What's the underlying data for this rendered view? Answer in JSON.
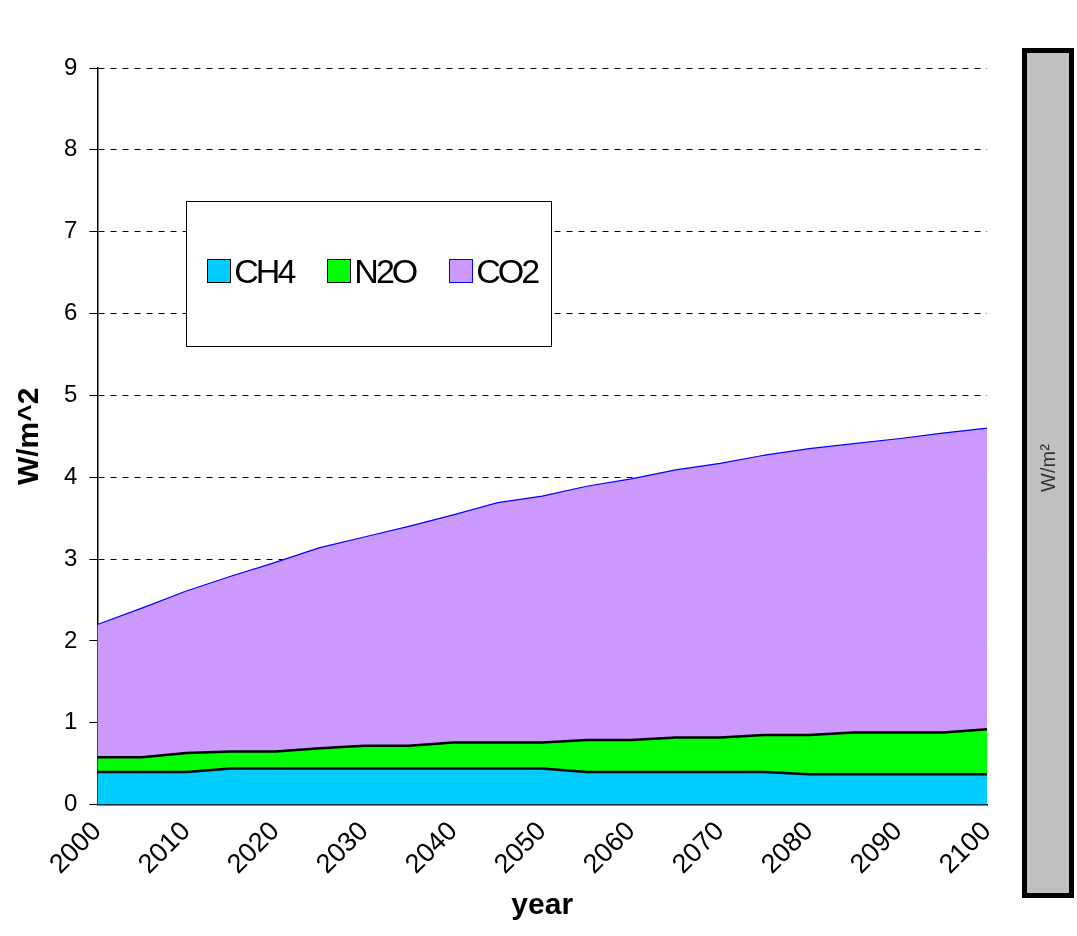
{
  "chart_data": {
    "type": "area",
    "stacked": true,
    "xlabel": "year",
    "ylabel": "W/m^2",
    "categories": [
      "2000",
      null,
      "2010",
      null,
      "2020",
      null,
      "2030",
      null,
      "2040",
      null,
      "2050",
      null,
      "2060",
      null,
      "2070",
      null,
      "2080",
      null,
      "2090",
      null,
      "2100"
    ],
    "series": [
      {
        "name": "CH4",
        "color": "#00ccff",
        "values": [
          0.4,
          0.4,
          0.4,
          0.44,
          0.44,
          0.44,
          0.44,
          0.44,
          0.44,
          0.44,
          0.44,
          0.4,
          0.4,
          0.4,
          0.4,
          0.4,
          0.37,
          0.37,
          0.37,
          0.37,
          0.37
        ]
      },
      {
        "name": "N2O",
        "color": "#00ff00",
        "values": [
          0.18,
          0.18,
          0.23,
          0.21,
          0.21,
          0.25,
          0.28,
          0.28,
          0.32,
          0.32,
          0.32,
          0.39,
          0.39,
          0.42,
          0.42,
          0.45,
          0.48,
          0.51,
          0.51,
          0.51,
          0.55
        ]
      },
      {
        "name": "CO2",
        "color": "#cc99ff",
        "values": [
          1.62,
          1.82,
          1.98,
          2.14,
          2.31,
          2.45,
          2.55,
          2.68,
          2.78,
          2.93,
          3.01,
          3.1,
          3.19,
          3.27,
          3.35,
          3.42,
          3.5,
          3.53,
          3.59,
          3.66,
          3.68
        ]
      }
    ],
    "ylim": [
      0,
      9
    ],
    "yticks": [
      0,
      1,
      2,
      3,
      4,
      5,
      6,
      7,
      8,
      9
    ],
    "grid": "y",
    "legend": "top left",
    "annotations": [
      "W/m²"
    ]
  }
}
